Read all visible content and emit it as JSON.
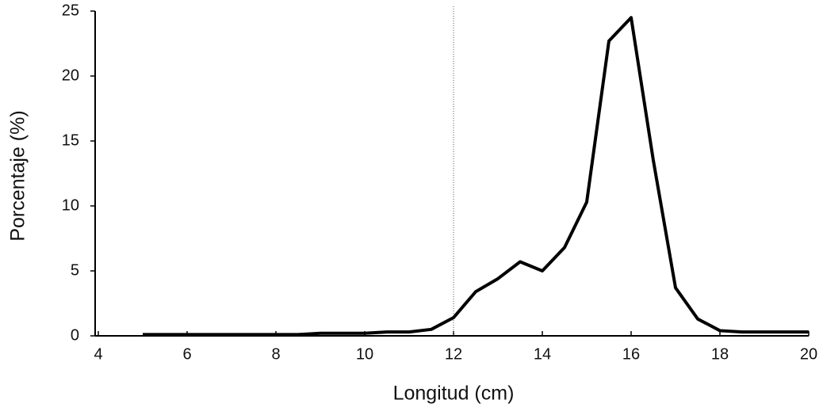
{
  "chart_data": {
    "type": "line",
    "x_label": "Longitud (cm)",
    "y_label": "Porcentaje (%)",
    "x": [
      5,
      5.5,
      6,
      6.5,
      7,
      7.5,
      8,
      8.5,
      9,
      9.5,
      10,
      10.5,
      11,
      11.5,
      12,
      12.5,
      13,
      13.5,
      14,
      14.5,
      15,
      15.5,
      16,
      16.5,
      17,
      17.5,
      18,
      18.5,
      19,
      19.5,
      20
    ],
    "series": [
      {
        "color": "#000000",
        "values": [
          0.1,
          0.1,
          0.1,
          0.1,
          0.1,
          0.1,
          0.1,
          0.1,
          0.2,
          0.2,
          0.2,
          0.3,
          0.3,
          0.5,
          1.4,
          3.4,
          4.4,
          5.7,
          5.0,
          6.8,
          10.3,
          22.7,
          24.5,
          13.5,
          3.7,
          1.3,
          0.4,
          0.3,
          0.3,
          0.3,
          0.3
        ]
      }
    ],
    "xlim": [
      4,
      20
    ],
    "xticks": [
      4,
      6,
      8,
      10,
      12,
      14,
      16,
      18,
      20
    ],
    "ylim": [
      0,
      25
    ],
    "yticks": [
      0,
      5,
      10,
      15,
      20,
      25
    ],
    "vline": 12,
    "grid": false
  }
}
